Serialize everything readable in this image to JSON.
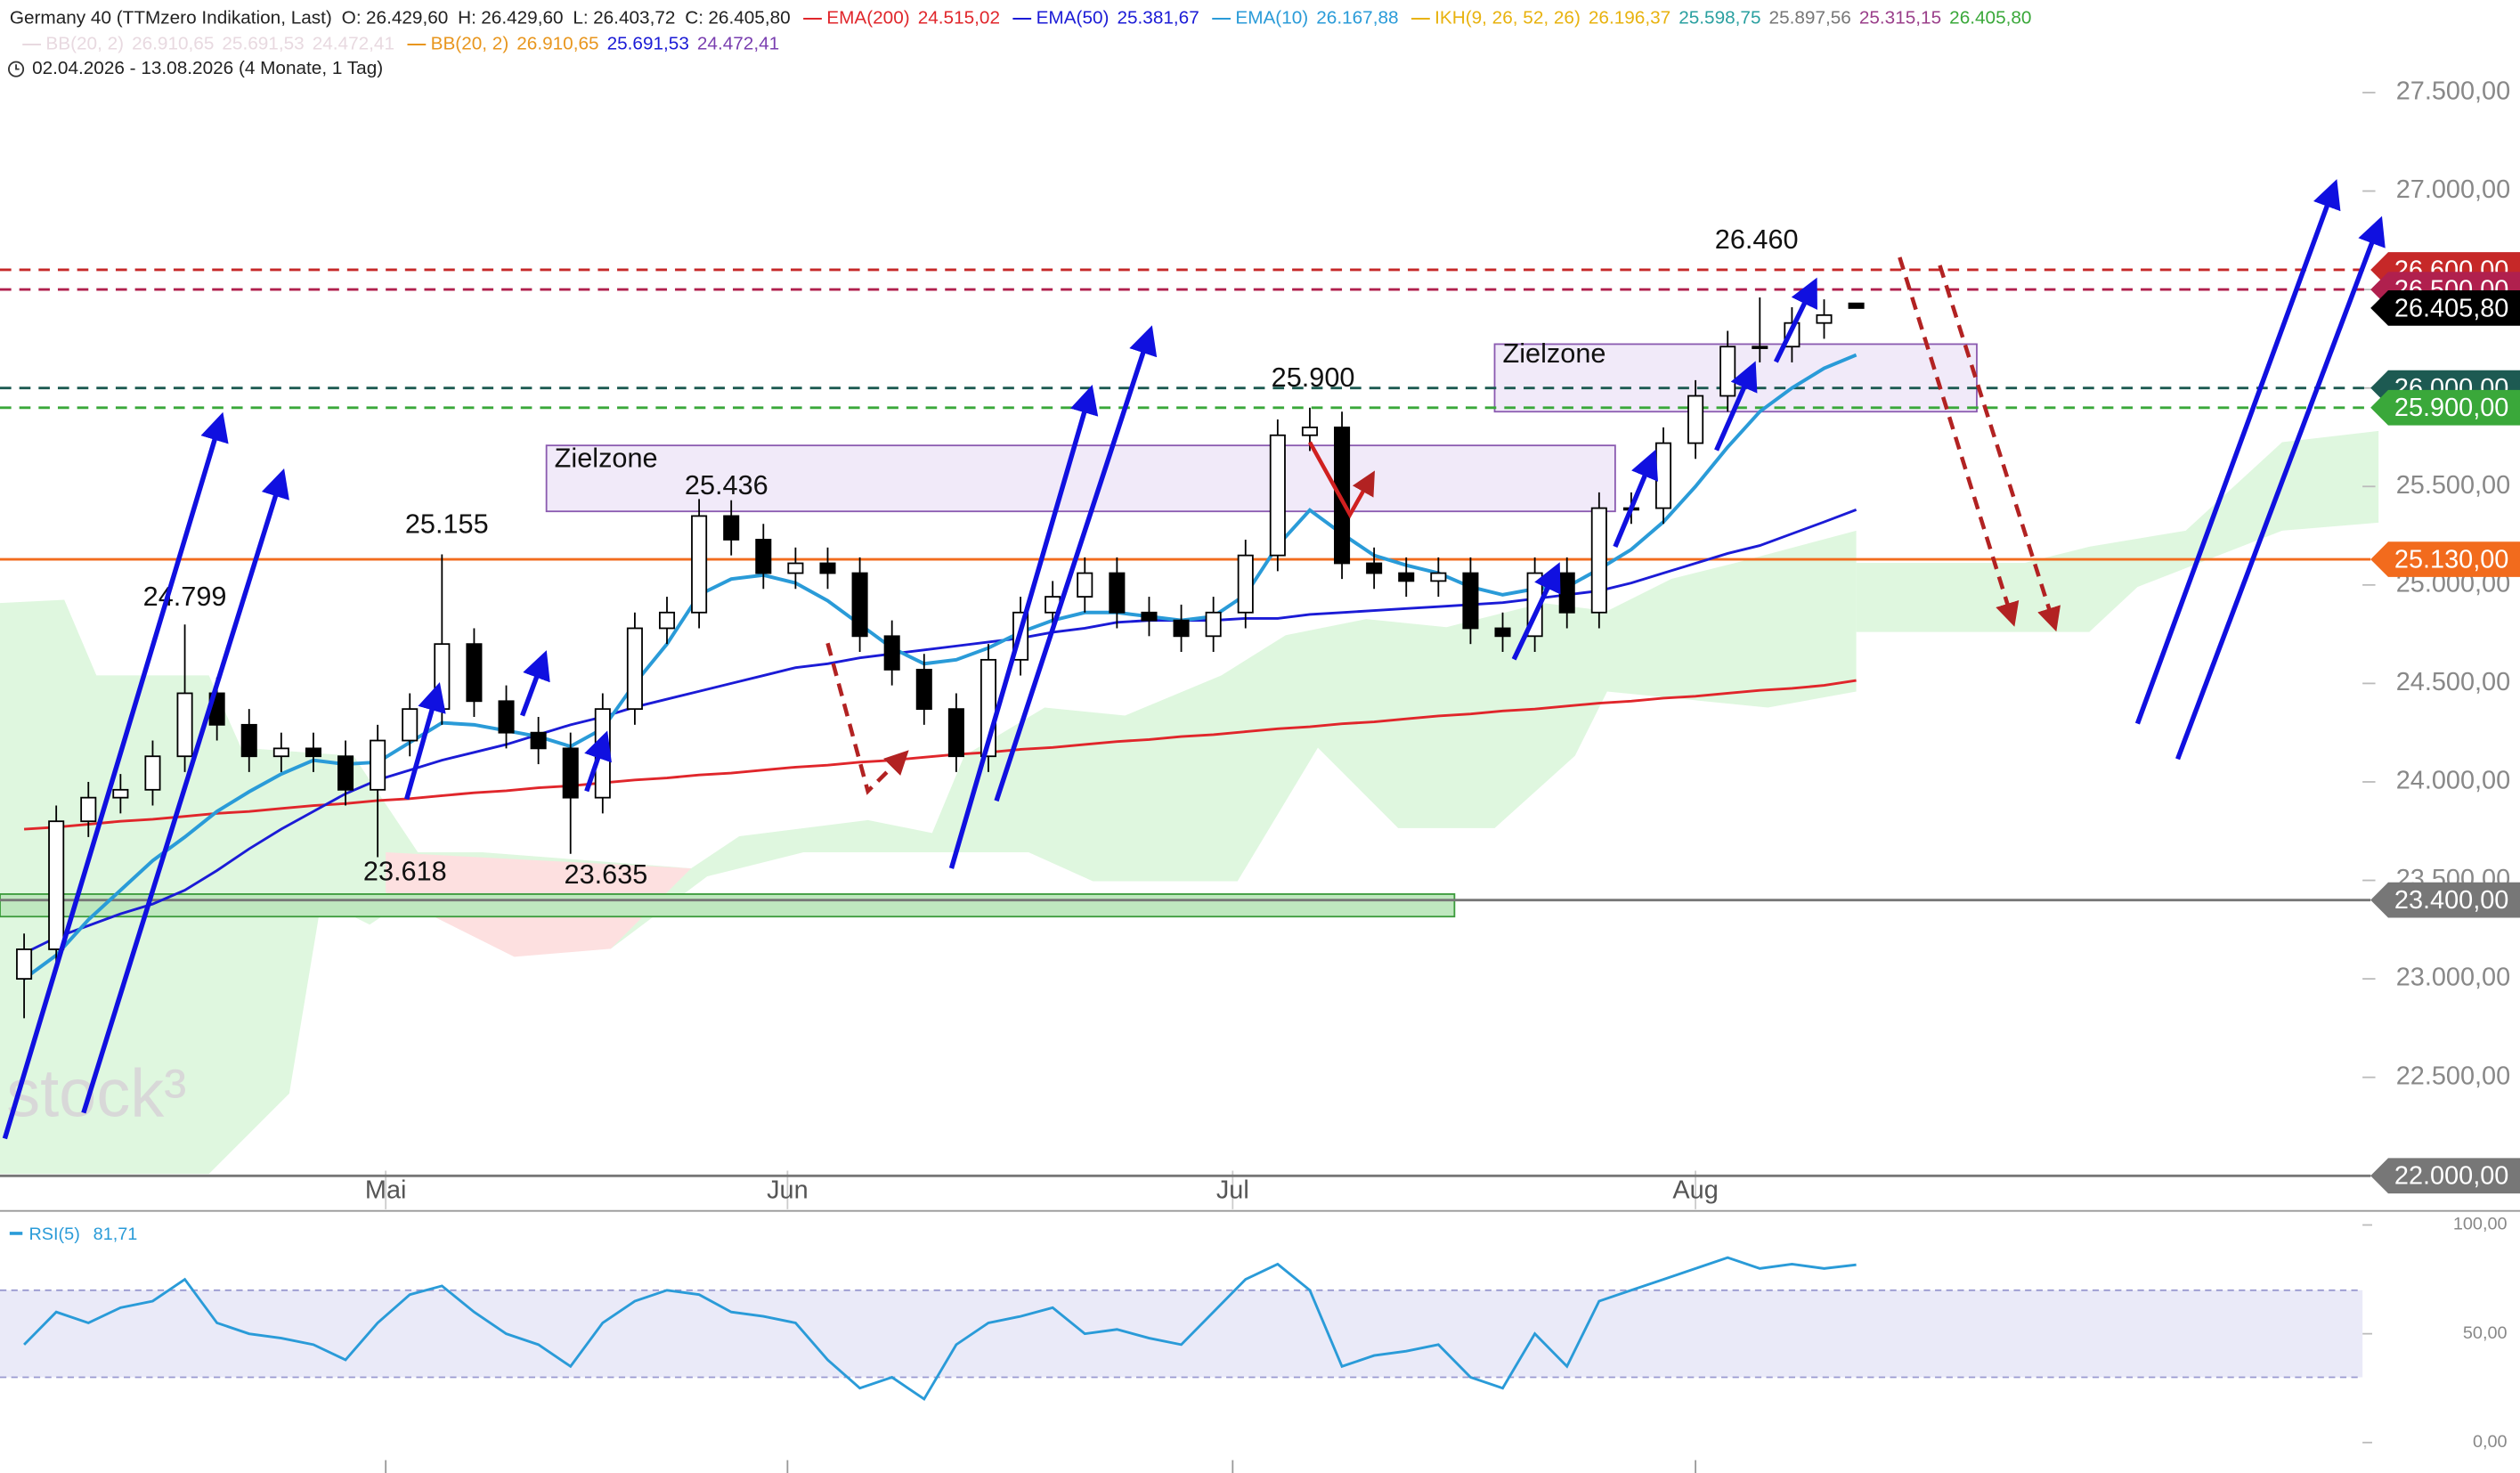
{
  "header": {
    "title": "Germany 40 (TTMzero Indikation, Last)",
    "ohlc": [
      {
        "label": "O:",
        "value": "26.429,60"
      },
      {
        "label": "H:",
        "value": "26.429,60"
      },
      {
        "label": "L:",
        "value": "26.403,72"
      },
      {
        "label": "C:",
        "value": "26.405,80"
      }
    ],
    "legend": [
      {
        "name": "EMA(200)",
        "color": "#e0262b",
        "values": [
          {
            "text": "24.515,02",
            "color": "#e0262b"
          }
        ]
      },
      {
        "name": "EMA(50)",
        "color": "#1b1bd6",
        "values": [
          {
            "text": "25.381,67",
            "color": "#1b1bd6"
          }
        ]
      },
      {
        "name": "EMA(10)",
        "color": "#2a9bd8",
        "values": [
          {
            "text": "26.167,88",
            "color": "#2a9bd8"
          }
        ]
      },
      {
        "name": "IKH(9, 26, 52, 26)",
        "color": "#e8b20e",
        "values": [
          {
            "text": "26.196,37",
            "color": "#e8b20e"
          },
          {
            "text": "25.598,75",
            "color": "#2aa0a0"
          },
          {
            "text": "25.897,56",
            "color": "#777777"
          },
          {
            "text": "25.315,15",
            "color": "#9a3f8a"
          },
          {
            "text": "26.405,80",
            "color": "#3aa83a"
          }
        ]
      }
    ],
    "legend2": [
      {
        "name": "BB(20, 2)",
        "color": "#e8d9e0",
        "values": [
          {
            "text": "26.910,65",
            "color": "#e8d9e0"
          },
          {
            "text": "25.691,53",
            "color": "#e8d9e0"
          },
          {
            "text": "24.472,41",
            "color": "#e8d9e0"
          }
        ]
      },
      {
        "name": "BB(20, 2)",
        "color": "#e8961e",
        "values": [
          {
            "text": "26.910,65",
            "color": "#e8961e"
          },
          {
            "text": "25.691,53",
            "color": "#1b1bd6"
          },
          {
            "text": "24.472,41",
            "color": "#7a3fb0"
          }
        ]
      }
    ],
    "range": "02.04.2026 - 13.08.2026 (4 Monate, 1 Tag)",
    "watermark": "stock³"
  },
  "chart_data": [
    {
      "type": "candlestick",
      "open": [
        23000,
        23150,
        23800,
        23920,
        23960,
        24130,
        24450,
        24290,
        24130,
        24170,
        24130,
        23960,
        24210,
        24370,
        24700,
        24410,
        24250,
        24170,
        23920,
        24370,
        24780,
        24860,
        25350,
        25230,
        25060,
        25110,
        25060,
        24740,
        24570,
        24370,
        24130,
        24620,
        24860,
        24940,
        25060,
        24860,
        24820,
        24740,
        24860,
        25150,
        25760,
        25800,
        25110,
        25060,
        25020,
        25060,
        24780,
        24740,
        25060,
        24860,
        25390,
        25390,
        25720,
        25960,
        26210,
        26210,
        26330,
        26429.6
      ],
      "high": [
        23230,
        23880,
        24000,
        24040,
        24210,
        24799,
        24530,
        24370,
        24250,
        24250,
        24210,
        24290,
        24450,
        25155,
        24780,
        24490,
        24330,
        24250,
        24450,
        24860,
        24940,
        25436,
        25430,
        25310,
        25190,
        25190,
        25140,
        24820,
        24650,
        24450,
        24700,
        24940,
        25020,
        25140,
        25140,
        24940,
        24900,
        24940,
        25230,
        25840,
        25900,
        25880,
        25190,
        25140,
        25140,
        25140,
        24860,
        25140,
        25140,
        25470,
        25470,
        25800,
        26040,
        26290,
        26460,
        26410,
        26450,
        26429.6
      ],
      "low": [
        22800,
        23070,
        23720,
        23840,
        23880,
        24050,
        24210,
        24050,
        24050,
        24050,
        23880,
        23618,
        24130,
        24290,
        24330,
        24170,
        24090,
        23635,
        23840,
        24290,
        24700,
        24780,
        25150,
        24980,
        24980,
        24980,
        24660,
        24490,
        24290,
        24050,
        24050,
        24540,
        24780,
        24860,
        24780,
        24740,
        24660,
        24660,
        24780,
        25070,
        25680,
        25030,
        24980,
        24940,
        24940,
        24700,
        24660,
        24660,
        24780,
        24780,
        25310,
        25310,
        25640,
        25880,
        26130,
        26130,
        26250,
        26403.72
      ],
      "close": [
        23150,
        23800,
        23920,
        23960,
        24130,
        24450,
        24290,
        24130,
        24170,
        24130,
        23960,
        24210,
        24370,
        24700,
        24410,
        24250,
        24170,
        23920,
        24370,
        24780,
        24860,
        25350,
        25230,
        25060,
        25110,
        25060,
        24740,
        24570,
        24370,
        24130,
        24620,
        24860,
        24940,
        25060,
        24860,
        24820,
        24740,
        24860,
        25150,
        25760,
        25800,
        25110,
        25060,
        25020,
        25060,
        24780,
        24740,
        25060,
        24860,
        25390,
        25390,
        25720,
        25960,
        26210,
        26210,
        26330,
        26370,
        26405.8
      ],
      "up_color": "#ffffff",
      "down_color": "#000000",
      "series": [
        {
          "color": "#e0262b",
          "values": [
            23760,
            23770,
            23785,
            23800,
            23810,
            23825,
            23840,
            23850,
            23865,
            23880,
            23890,
            23905,
            23915,
            23930,
            23945,
            23955,
            23970,
            23980,
            23995,
            24010,
            24020,
            24035,
            24045,
            24060,
            24075,
            24085,
            24100,
            24110,
            24125,
            24140,
            24150,
            24165,
            24175,
            24190,
            24205,
            24215,
            24230,
            24240,
            24255,
            24270,
            24280,
            24295,
            24305,
            24320,
            24335,
            24345,
            24360,
            24370,
            24385,
            24400,
            24410,
            24425,
            24435,
            24450,
            24465,
            24475,
            24490,
            24515
          ]
        },
        {
          "color": "#1b1bd6",
          "values": [
            23130,
            23210,
            23270,
            23330,
            23380,
            23450,
            23550,
            23660,
            23760,
            23850,
            23940,
            24010,
            24060,
            24110,
            24150,
            24190,
            24240,
            24290,
            24330,
            24380,
            24420,
            24460,
            24500,
            24540,
            24580,
            24600,
            24630,
            24650,
            24670,
            24690,
            24710,
            24730,
            24760,
            24780,
            24810,
            24820,
            24820,
            24820,
            24830,
            24830,
            24850,
            24860,
            24870,
            24880,
            24890,
            24900,
            24910,
            24930,
            24950,
            24970,
            25010,
            25060,
            25110,
            25160,
            25200,
            25260,
            25320,
            25381.67
          ]
        },
        {
          "color": "#2a9bd8",
          "values": [
            23000,
            23120,
            23300,
            23450,
            23600,
            23720,
            23850,
            23950,
            24040,
            24110,
            24090,
            24100,
            24200,
            24300,
            24290,
            24260,
            24230,
            24180,
            24270,
            24500,
            24700,
            24950,
            25030,
            25050,
            25010,
            24920,
            24800,
            24680,
            24600,
            24620,
            24680,
            24760,
            24820,
            24860,
            24860,
            24840,
            24820,
            24840,
            24950,
            25200,
            25380,
            25260,
            25150,
            25100,
            25060,
            24990,
            24950,
            24980,
            24990,
            25080,
            25180,
            25320,
            25500,
            25700,
            25880,
            26000,
            26100,
            26167.88
          ]
        }
      ],
      "xlim": [
        -0.75,
        72.75
      ],
      "ylim": [
        21830,
        27970
      ],
      "xticks": [
        {
          "value": 11.25,
          "label": "Mai"
        },
        {
          "value": 23.75,
          "label": "Jun"
        },
        {
          "value": 37.6,
          "label": "Jul"
        },
        {
          "value": 52,
          "label": "Aug"
        }
      ],
      "yticks": [
        {
          "value": 22000,
          "label": "22.000,00"
        },
        {
          "value": 22500,
          "label": "22.500,00"
        },
        {
          "value": 23000,
          "label": "23.000,00"
        },
        {
          "value": 23500,
          "label": "23.500,00"
        },
        {
          "value": 24000,
          "label": "24.000,00"
        },
        {
          "value": 24500,
          "label": "24.500,00"
        },
        {
          "value": 25000,
          "label": "25.000,00"
        },
        {
          "value": 25500,
          "label": "25.500,00"
        },
        {
          "value": 26000,
          "label": "26.000,00"
        },
        {
          "value": 26500,
          "label": "26.500,00"
        },
        {
          "value": 27000,
          "label": "27.000,00"
        },
        {
          "value": 27500,
          "label": "27.500,00"
        }
      ],
      "levels": [
        {
          "value": 26600,
          "label": "26.600,00",
          "color": "#c62828",
          "style": "dashed"
        },
        {
          "value": 26500,
          "label": "26.500,00",
          "color": "#b0204e",
          "style": "dashed"
        },
        {
          "value": 26000,
          "label": "26.000,00",
          "color": "#1d5a52",
          "style": "dashed"
        },
        {
          "value": 25900,
          "label": "25.900,00",
          "color": "#3aa83a",
          "style": "dashed"
        },
        {
          "value": 25130,
          "label": "25.130,00",
          "color": "#f26b1d",
          "style": "solid"
        },
        {
          "value": 23400,
          "label": "23.400,00",
          "color": "#777777",
          "style": "solid"
        },
        {
          "value": 22000,
          "label": "22.000,00",
          "color": "#777777",
          "style": "solid"
        },
        {
          "value": 26405.8,
          "label": "26.405,80",
          "color": "#000000",
          "style": "none"
        }
      ],
      "annotations": [
        "24.799",
        "25.155",
        "23.618",
        "23.635",
        "25.436",
        "25.900",
        "26.460",
        "Zielzone",
        "Zielzone"
      ]
    },
    {
      "type": "line",
      "name": "RSI(5)",
      "legend_value": "81,71",
      "color": "#2a9bd8",
      "values": [
        45,
        60,
        55,
        62,
        65,
        75,
        55,
        50,
        48,
        45,
        38,
        55,
        68,
        72,
        60,
        50,
        45,
        35,
        55,
        65,
        70,
        68,
        60,
        58,
        55,
        38,
        25,
        30,
        20,
        45,
        55,
        58,
        62,
        50,
        52,
        48,
        45,
        60,
        75,
        82,
        70,
        35,
        40,
        42,
        45,
        30,
        25,
        50,
        35,
        65,
        70,
        75,
        80,
        85,
        80,
        82,
        80,
        81.71
      ],
      "xlim": [
        -0.75,
        72.75
      ],
      "ylim": [
        -14,
        105
      ],
      "band": [
        30,
        70
      ],
      "yticks": [
        {
          "value": 0,
          "label": "0,00"
        },
        {
          "value": 50,
          "label": "50,00"
        },
        {
          "value": 100,
          "label": "100,00"
        }
      ]
    }
  ]
}
